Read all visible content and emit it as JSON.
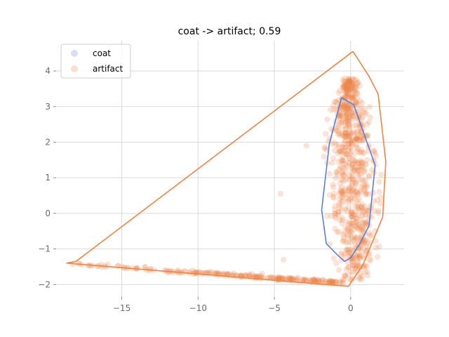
{
  "chart_data": {
    "type": "scatter",
    "title": "coat -> artifact; 0.59",
    "xlabel": "",
    "ylabel": "",
    "xlim": [
      -19.3,
      3.5
    ],
    "ylim": [
      -2.35,
      4.85
    ],
    "xticks": [
      -15,
      -10,
      -5,
      0
    ],
    "xtick_labels": [
      "−15",
      "−10",
      "−5",
      "0"
    ],
    "yticks": [
      -2,
      -1,
      0,
      1,
      2,
      3,
      4
    ],
    "ytick_labels": [
      "−2",
      "−1",
      "0",
      "1",
      "2",
      "3",
      "4"
    ],
    "grid": true,
    "legend_position": "top-left",
    "series": [
      {
        "name": "coat",
        "color": "#5a7fd6",
        "hull": [
          [
            -0.6,
            3.25
          ],
          [
            0.2,
            3.05
          ],
          [
            1.6,
            1.35
          ],
          [
            1.2,
            -0.35
          ],
          [
            0.6,
            -0.85
          ],
          [
            0.0,
            -1.25
          ],
          [
            -0.4,
            -1.35
          ],
          [
            -0.8,
            -1.2
          ],
          [
            -1.6,
            -0.85
          ],
          [
            -1.9,
            0.1
          ],
          [
            -1.4,
            1.95
          ],
          [
            -0.6,
            3.25
          ]
        ]
      },
      {
        "name": "artifact",
        "color": "#ee8548",
        "hull": [
          [
            0.15,
            4.55
          ],
          [
            1.2,
            3.85
          ],
          [
            1.8,
            3.35
          ],
          [
            2.3,
            1.45
          ],
          [
            2.1,
            -0.1
          ],
          [
            0.8,
            -1.45
          ],
          [
            -0.15,
            -2.05
          ],
          [
            -18.6,
            -1.4
          ],
          [
            -18.0,
            -1.35
          ],
          [
            0.15,
            4.55
          ]
        ],
        "points_summary": {
          "main_cluster": {
            "x_range": [
              -3.5,
              2.3
            ],
            "y_range": [
              -2.05,
              4.55
            ]
          },
          "tail": {
            "from": [
              -18.9,
              -1.38
            ],
            "to": [
              -1.0,
              -2.0
            ]
          }
        }
      }
    ]
  }
}
